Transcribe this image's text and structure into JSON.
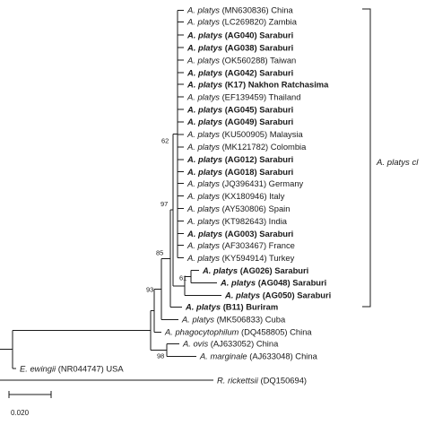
{
  "tree": {
    "taxa": [
      {
        "species": "A. platys",
        "accession": "(MN630836)",
        "origin": "China",
        "bold": false
      },
      {
        "species": "A. platys",
        "accession": "(LC269820)",
        "origin": "Zambia",
        "bold": false
      },
      {
        "species": "A. platys",
        "accession": "(AG040)",
        "origin": "Saraburi",
        "bold": true
      },
      {
        "species": "A. platys",
        "accession": "(AG038)",
        "origin": "Saraburi",
        "bold": true
      },
      {
        "species": "A. platys",
        "accession": "(OK560288)",
        "origin": "Taiwan",
        "bold": false
      },
      {
        "species": "A. platys",
        "accession": "(AG042)",
        "origin": "Saraburi",
        "bold": true
      },
      {
        "species": "A. platys",
        "accession": "(K17)",
        "origin": "Nakhon Ratchasima",
        "bold": true
      },
      {
        "species": "A. platys",
        "accession": "(EF139459)",
        "origin": "Thailand",
        "bold": false
      },
      {
        "species": "A. platys",
        "accession": "(AG045)",
        "origin": "Saraburi",
        "bold": true
      },
      {
        "species": "A. platys",
        "accession": "(AG049)",
        "origin": "Saraburi",
        "bold": true
      },
      {
        "species": "A. platys",
        "accession": "(KU500905)",
        "origin": "Malaysia",
        "bold": false
      },
      {
        "species": "A. platys",
        "accession": "(MK121782)",
        "origin": "Colombia",
        "bold": false
      },
      {
        "species": "A. platys",
        "accession": "(AG012)",
        "origin": "Saraburi",
        "bold": true
      },
      {
        "species": "A. platys",
        "accession": "(AG018)",
        "origin": "Saraburi",
        "bold": true
      },
      {
        "species": "A. platys",
        "accession": "(JQ396431)",
        "origin": "Germany",
        "bold": false
      },
      {
        "species": "A. platys",
        "accession": "(KX180946)",
        "origin": "Italy",
        "bold": false
      },
      {
        "species": "A. platys",
        "accession": "(AY530806)",
        "origin": "Spain",
        "bold": false
      },
      {
        "species": "A. platys",
        "accession": "(KT982643)",
        "origin": "India",
        "bold": false
      },
      {
        "species": "A. platys",
        "accession": "(AG003)",
        "origin": "Saraburi",
        "bold": true
      },
      {
        "species": "A. platys",
        "accession": "(AF303467)",
        "origin": "France",
        "bold": false
      },
      {
        "species": "A. platys",
        "accession": "(KY594914)",
        "origin": "Turkey",
        "bold": false
      },
      {
        "species": "A. platys",
        "accession": "(AG026)",
        "origin": "Saraburi",
        "bold": true
      },
      {
        "species": "A. platys",
        "accession": "(AG048)",
        "origin": "Saraburi",
        "bold": true
      },
      {
        "species": "A. platys",
        "accession": "(AG050)",
        "origin": "Saraburi",
        "bold": true
      },
      {
        "species": "A. platys",
        "accession": "(B11)",
        "origin": "Buriram",
        "bold": true
      },
      {
        "species": "A. platys",
        "accession": "(MK506833)",
        "origin": "Cuba",
        "bold": false
      },
      {
        "species": "A. phagocytophilum",
        "accession": "(DQ458805)",
        "origin": "China",
        "bold": false
      },
      {
        "species": "A. ovis",
        "accession": "(AJ633052)",
        "origin": "China",
        "bold": false
      },
      {
        "species": "A. marginale",
        "accession": "(AJ633048)",
        "origin": "China",
        "bold": false
      },
      {
        "species": "E. ewingii",
        "accession": "(NR044747)",
        "origin": "USA",
        "bold": false
      },
      {
        "species": "R. rickettsii",
        "accession": "(DQ150694)",
        "origin": "",
        "bold": false
      }
    ],
    "bootstrap": [
      "62",
      "97",
      "85",
      "61",
      "93",
      "98"
    ],
    "clade_label": "A. platys cl",
    "scale_label": "0.020"
  }
}
